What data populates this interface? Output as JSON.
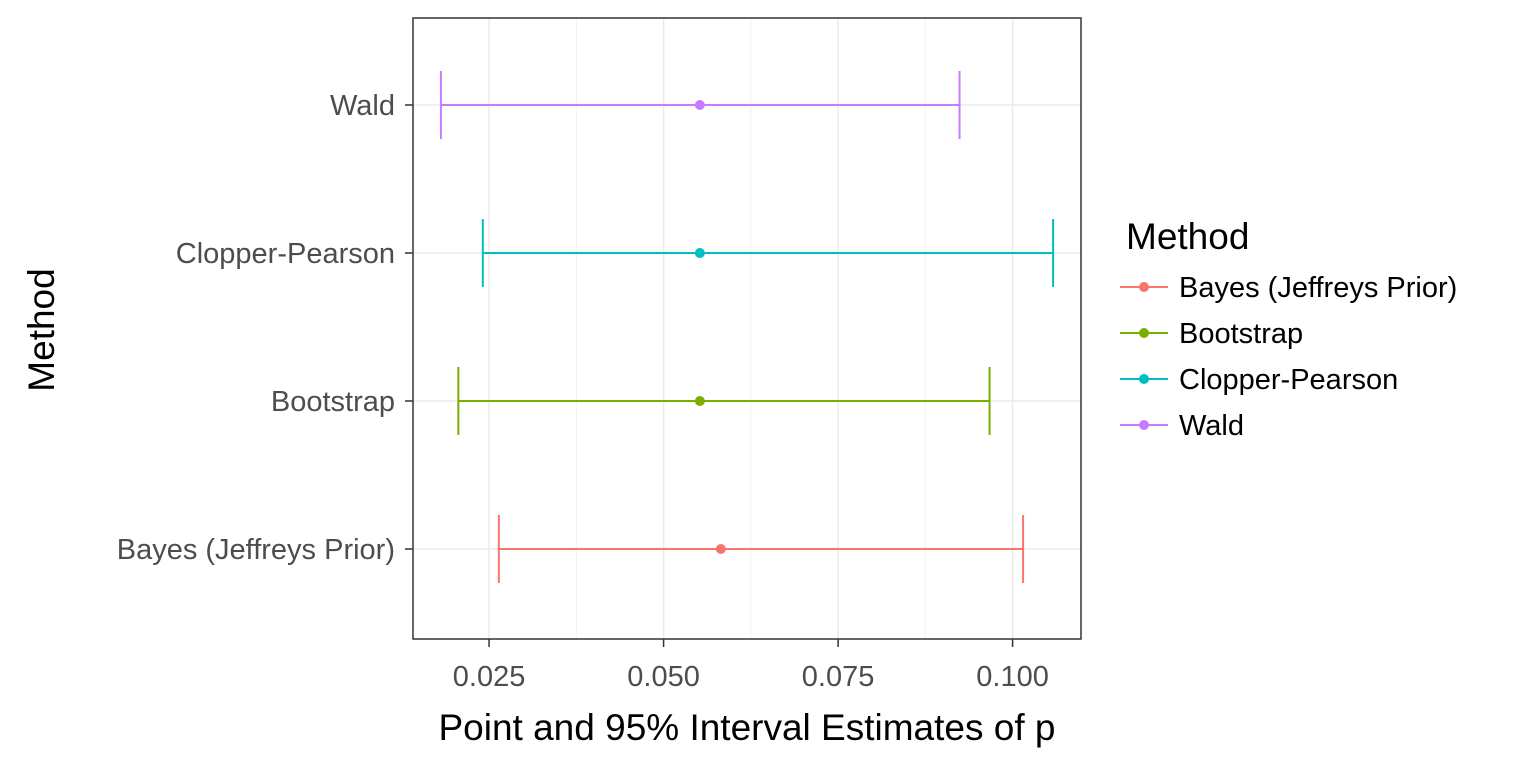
{
  "chart_data": {
    "type": "errorbar",
    "orientation": "horizontal",
    "categories": [
      "Bayes (Jeffreys Prior)",
      "Bootstrap",
      "Clopper-Pearson",
      "Wald"
    ],
    "series": [
      {
        "name": "Bayes (Jeffreys Prior)",
        "color": "#f8766d",
        "estimate": 0.0582,
        "lower": 0.0264,
        "upper": 0.1015
      },
      {
        "name": "Bootstrap",
        "color": "#7cae00",
        "estimate": 0.0552,
        "lower": 0.0206,
        "upper": 0.0967
      },
      {
        "name": "Clopper-Pearson",
        "color": "#00bfc4",
        "estimate": 0.0552,
        "lower": 0.0241,
        "upper": 0.1058
      },
      {
        "name": "Wald",
        "color": "#c77cff",
        "estimate": 0.0552,
        "lower": 0.0181,
        "upper": 0.0924
      }
    ],
    "xlabel": "Point and 95% Interval Estimates of p",
    "ylabel": "Method",
    "xticks": [
      "0.025",
      "0.050",
      "0.075",
      "0.100"
    ],
    "xtick_values": [
      0.025,
      0.05,
      0.075,
      0.1
    ],
    "xlim": [
      0.0141,
      0.1098
    ],
    "grid": true,
    "legend": {
      "title": "Method",
      "position": "right"
    }
  }
}
